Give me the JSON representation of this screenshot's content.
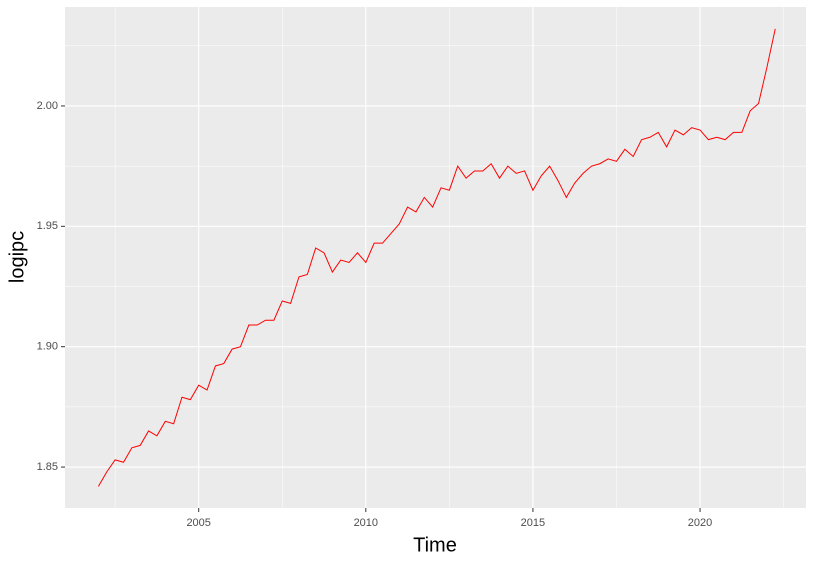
{
  "chart_data": {
    "type": "line",
    "x_label": "Time",
    "y_label": "logipc",
    "x": [
      2002.0,
      2002.25,
      2002.5,
      2002.75,
      2003.0,
      2003.25,
      2003.5,
      2003.75,
      2004.0,
      2004.25,
      2004.5,
      2004.75,
      2005.0,
      2005.25,
      2005.5,
      2005.75,
      2006.0,
      2006.25,
      2006.5,
      2006.75,
      2007.0,
      2007.25,
      2007.5,
      2007.75,
      2008.0,
      2008.25,
      2008.5,
      2008.75,
      2009.0,
      2009.25,
      2009.5,
      2009.75,
      2010.0,
      2010.25,
      2010.5,
      2010.75,
      2011.0,
      2011.25,
      2011.5,
      2011.75,
      2012.0,
      2012.25,
      2012.5,
      2012.75,
      2013.0,
      2013.25,
      2013.5,
      2013.75,
      2014.0,
      2014.25,
      2014.5,
      2014.75,
      2015.0,
      2015.25,
      2015.5,
      2015.75,
      2016.0,
      2016.25,
      2016.5,
      2016.75,
      2017.0,
      2017.25,
      2017.5,
      2017.75,
      2018.0,
      2018.25,
      2018.5,
      2018.75,
      2019.0,
      2019.25,
      2019.5,
      2019.75,
      2020.0,
      2020.25,
      2020.5,
      2020.75,
      2021.0,
      2021.25,
      2021.5,
      2021.75,
      2022.0,
      2022.25
    ],
    "series": [
      {
        "name": "logipc",
        "color": "#ff0000",
        "values": [
          1.842,
          1.848,
          1.853,
          1.852,
          1.858,
          1.859,
          1.865,
          1.863,
          1.869,
          1.868,
          1.879,
          1.878,
          1.884,
          1.882,
          1.892,
          1.893,
          1.899,
          1.9,
          1.909,
          1.909,
          1.911,
          1.911,
          1.919,
          1.918,
          1.929,
          1.93,
          1.941,
          1.939,
          1.931,
          1.936,
          1.935,
          1.939,
          1.935,
          1.943,
          1.943,
          1.947,
          1.951,
          1.958,
          1.956,
          1.962,
          1.958,
          1.966,
          1.965,
          1.975,
          1.97,
          1.973,
          1.973,
          1.976,
          1.97,
          1.975,
          1.972,
          1.973,
          1.965,
          1.971,
          1.975,
          1.969,
          1.962,
          1.968,
          1.972,
          1.975,
          1.976,
          1.978,
          1.977,
          1.982,
          1.979,
          1.986,
          1.987,
          1.989,
          1.983,
          1.99,
          1.988,
          1.991,
          1.99,
          1.986,
          1.987,
          1.986,
          1.989,
          1.989,
          1.998,
          2.001,
          2.016,
          2.032
        ]
      }
    ],
    "xlim": [
      2001.0,
      2023.17
    ],
    "xticks": [
      2005,
      2010,
      2015,
      2020
    ],
    "ylim": [
      1.833,
      2.0411
    ],
    "yticks": [
      1.85,
      {
        "value": 1.9,
        "label": "1.90"
      },
      1.95,
      {
        "value": 2.0,
        "label": "2.00"
      }
    ],
    "grid": true
  }
}
